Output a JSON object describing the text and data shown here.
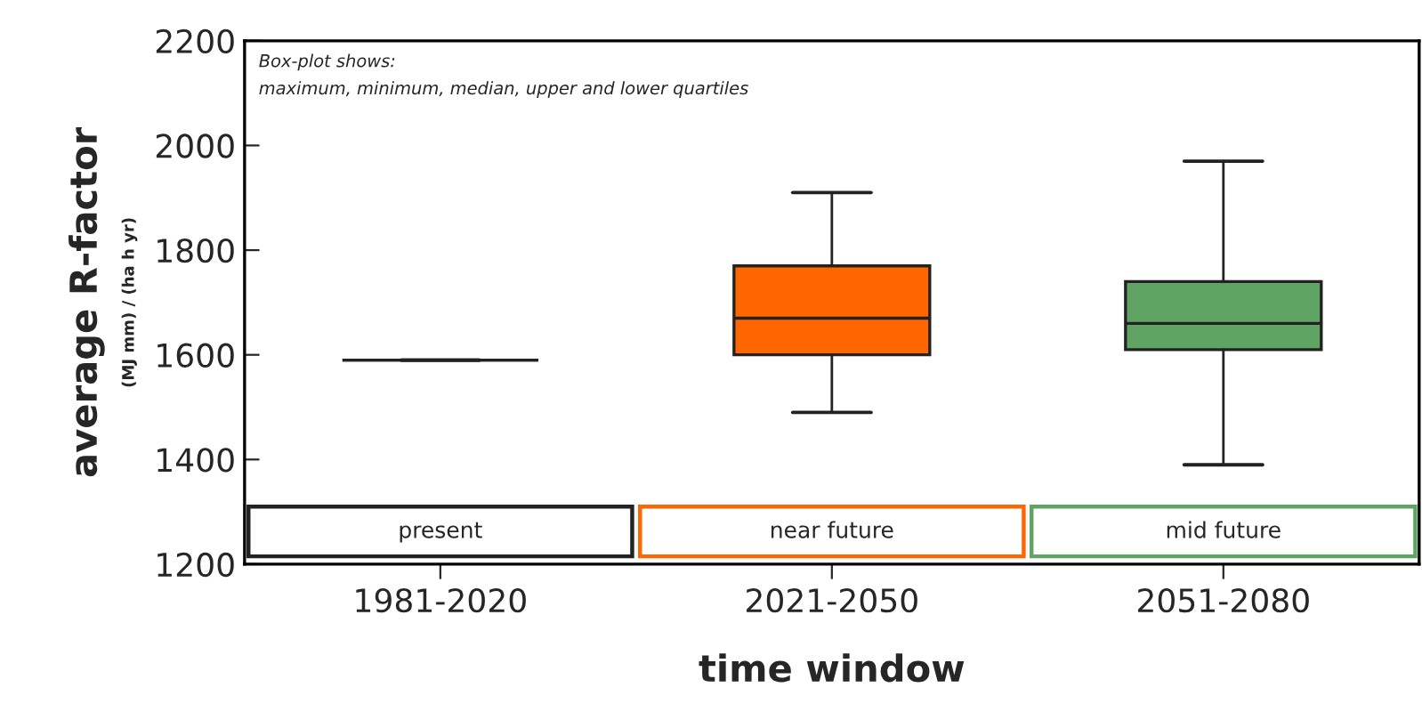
{
  "chart_data": {
    "type": "box",
    "categories": [
      "1981-2020",
      "2021-2050",
      "2051-2080"
    ],
    "boxes": [
      {
        "low": 1590,
        "q1": 1590,
        "median": 1590,
        "q3": 1590,
        "high": 1590
      },
      {
        "low": 1490,
        "q1": 1600,
        "median": 1670,
        "q3": 1770,
        "high": 1910
      },
      {
        "low": 1390,
        "q1": 1610,
        "median": 1660,
        "q3": 1740,
        "high": 1970
      }
    ],
    "colors": [
      "#222222",
      "#ff6600",
      "#5fa463"
    ],
    "xlabel": "time window",
    "ylabel": "average R-factor\n(MJ mm) / (ha h yr)",
    "ylim": [
      1200,
      2200
    ],
    "yticks": [
      1200,
      1400,
      1600,
      1800,
      2000,
      2200
    ],
    "annotations": [
      "Box-plot shows:\nmaximum, minimum, median, upper and lower quartiles",
      "present",
      "near future",
      "mid future"
    ],
    "grid": false,
    "legend": false
  }
}
